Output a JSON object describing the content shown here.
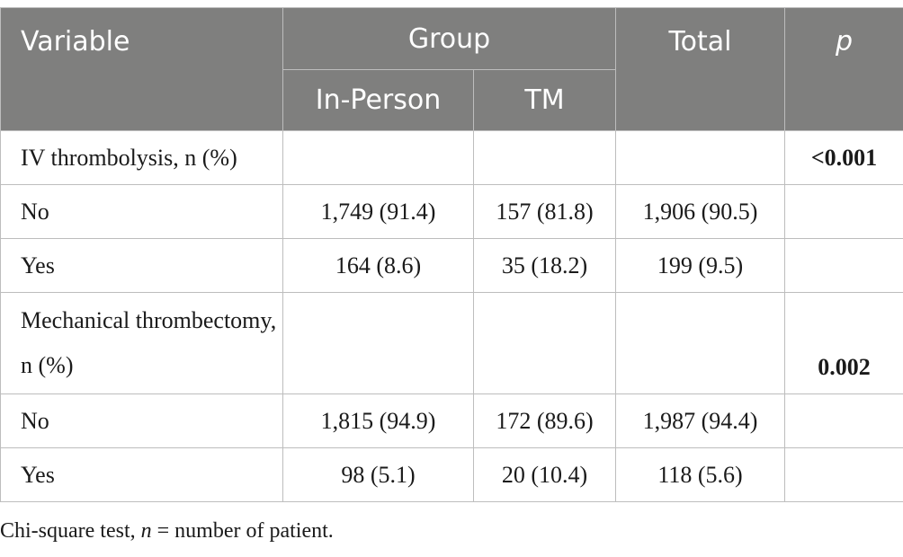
{
  "table": {
    "headers": {
      "variable": "Variable",
      "group": "Group",
      "total": "Total",
      "p": "p",
      "in_person": "In-Person",
      "tm": "TM"
    },
    "rows": [
      {
        "label": "IV thrombolysis, n (%)",
        "in_person": "",
        "tm": "",
        "total": "",
        "p": "<0.001"
      },
      {
        "label": "No",
        "in_person": "1,749 (91.4)",
        "tm": "157 (81.8)",
        "total": "1,906 (90.5)",
        "p": ""
      },
      {
        "label": "Yes",
        "in_person": "164 (8.6)",
        "tm": "35 (18.2)",
        "total": "199 (9.5)",
        "p": ""
      },
      {
        "label": "Mechanical thrombectomy, n (%)",
        "in_person": "",
        "tm": "",
        "total": "",
        "p": "0.002"
      },
      {
        "label": "No",
        "in_person": "1,815 (94.9)",
        "tm": "172 (89.6)",
        "total": "1,987 (94.4)",
        "p": ""
      },
      {
        "label": "Yes",
        "in_person": "98 (5.1)",
        "tm": "20 (10.4)",
        "total": "118 (5.6)",
        "p": ""
      }
    ]
  },
  "footnote": {
    "prefix": "Chi-square test, ",
    "n_symbol": "n",
    "suffix": " = number of patient."
  }
}
